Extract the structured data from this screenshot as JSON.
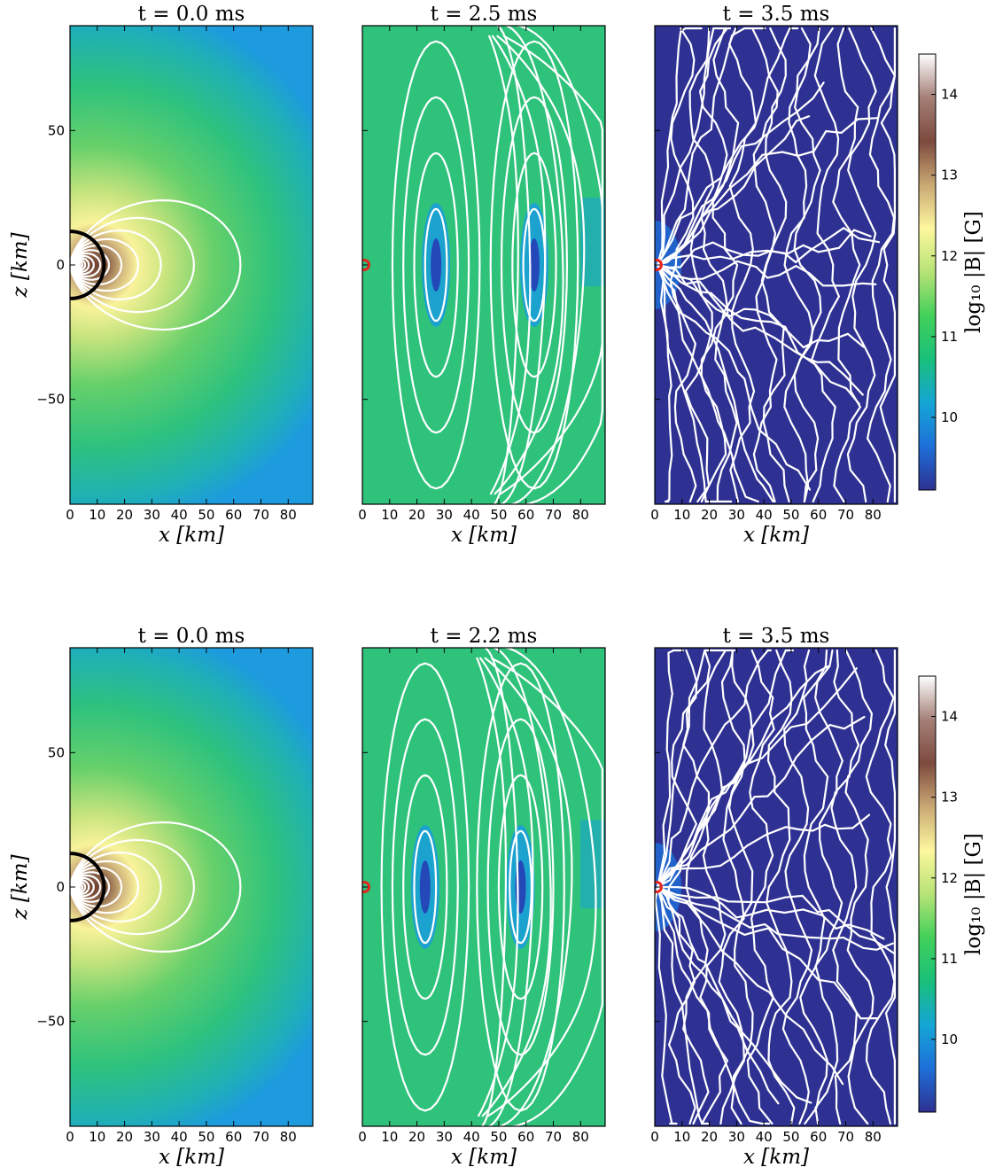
{
  "colorbar": {
    "label": "log₁₀ |B| [G]",
    "ticks": [
      "14",
      "13",
      "12",
      "11",
      "10"
    ],
    "tick_values": [
      14,
      13,
      12,
      11,
      10
    ],
    "range": [
      9.1,
      14.5
    ],
    "colormap": [
      "#2e3192",
      "#1d6fd8",
      "#15a6d6",
      "#19c07a",
      "#42d05a",
      "#b7e376",
      "#fdf79e",
      "#c9a874",
      "#7d4a3e",
      "#a48077",
      "#ffffff"
    ]
  },
  "x_axis": {
    "label": "x [km]",
    "ticks": [
      "0",
      "10",
      "20",
      "30",
      "40",
      "50",
      "60",
      "70",
      "80"
    ],
    "tick_values": [
      0,
      10,
      20,
      30,
      40,
      50,
      60,
      70,
      80
    ],
    "range": [
      0,
      89
    ]
  },
  "z_axis": {
    "label": "z [km]",
    "ticks": [
      "50",
      "0",
      "−50"
    ],
    "tick_values": [
      50,
      0,
      -50
    ],
    "range": [
      -89,
      89
    ]
  },
  "rows": [
    {
      "panels": [
        {
          "title": "t = 0.0 ms",
          "state": "initial-dipole",
          "star_radius_km": 12.5,
          "star_marker": "black-semicircle"
        },
        {
          "title": "t = 2.5 ms",
          "state": "loops",
          "star_marker": "red-circle",
          "loop_centers_x_km": [
            27,
            63
          ]
        },
        {
          "title": "t = 3.5 ms",
          "state": "turbulent",
          "star_marker": "red-circle"
        }
      ]
    },
    {
      "panels": [
        {
          "title": "t = 0.0 ms",
          "state": "initial-dipole",
          "star_radius_km": 12.5,
          "star_marker": "black-semicircle"
        },
        {
          "title": "t = 2.2 ms",
          "state": "loops",
          "star_marker": "red-circle",
          "loop_centers_x_km": [
            23,
            58
          ]
        },
        {
          "title": "t = 3.5 ms",
          "state": "turbulent",
          "star_marker": "red-circle"
        }
      ]
    }
  ]
}
